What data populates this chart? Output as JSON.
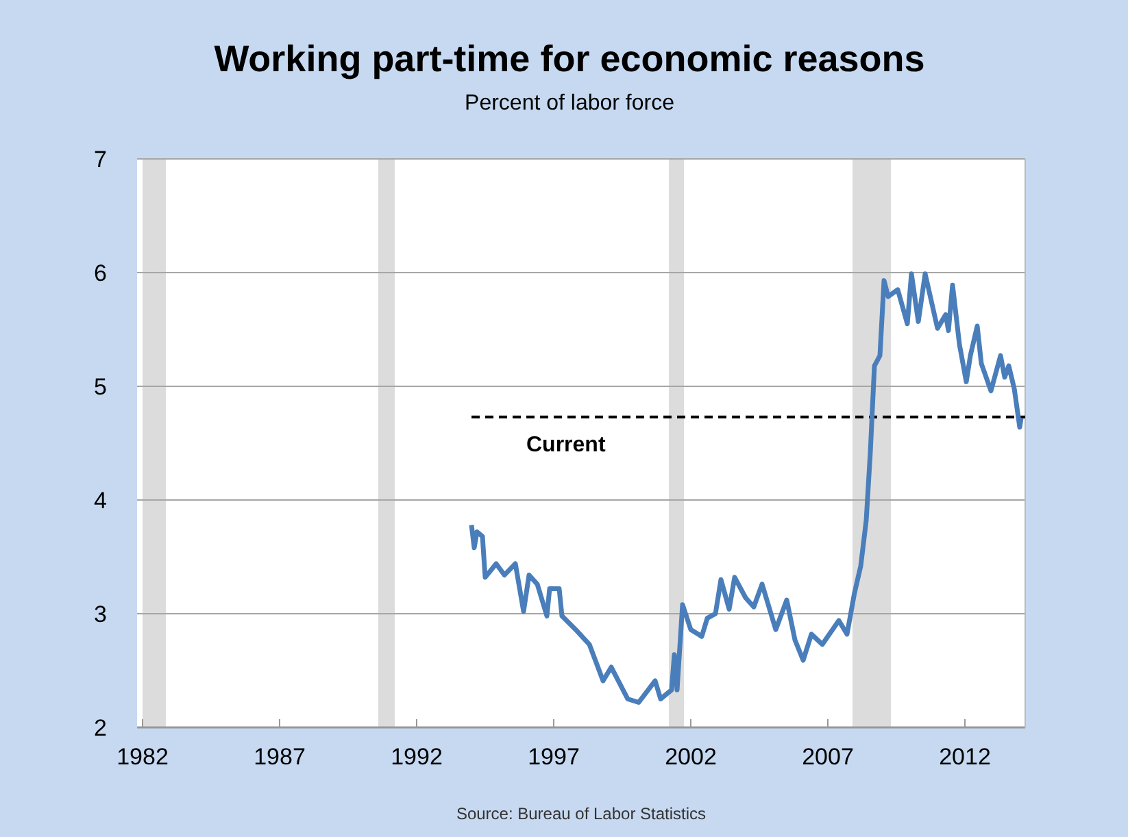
{
  "chart_data": {
    "type": "line",
    "title": "Working part-time for economic reasons",
    "subtitle": "Percent of labor force",
    "annotations": [
      "Source: Bureau of Labor Statistics"
    ],
    "x": [
      1994.0,
      1994.1,
      1994.2,
      1994.4,
      1994.5,
      1994.9,
      1995.2,
      1995.6,
      1995.9,
      1996.1,
      1996.4,
      1996.75,
      1996.85,
      1997.2,
      1997.3,
      1997.8,
      1998.3,
      1998.8,
      1999.1,
      1999.7,
      2000.1,
      2000.7,
      2000.9,
      2001.3,
      2001.4,
      2001.5,
      2001.7,
      2002.0,
      2002.4,
      2002.6,
      2002.9,
      2003.1,
      2003.4,
      2003.6,
      2004.0,
      2004.3,
      2004.6,
      2005.1,
      2005.5,
      2005.8,
      2006.1,
      2006.4,
      2006.8,
      2007.4,
      2007.7,
      2007.97,
      2008.2,
      2008.4,
      2008.55,
      2008.7,
      2008.9,
      2009.05,
      2009.2,
      2009.55,
      2009.9,
      2010.05,
      2010.3,
      2010.55,
      2011.0,
      2011.3,
      2011.4,
      2011.55,
      2011.8,
      2012.05,
      2012.2,
      2012.45,
      2012.6,
      2012.95,
      2013.3,
      2013.45,
      2013.6,
      2013.8,
      2014.0,
      2014.05
    ],
    "series": [
      {
        "color": "#4a7ebb",
        "values": [
          3.78,
          3.58,
          3.72,
          3.68,
          3.32,
          3.44,
          3.34,
          3.44,
          3.02,
          3.34,
          3.26,
          2.98,
          3.22,
          3.22,
          2.98,
          2.86,
          2.73,
          2.41,
          2.53,
          2.25,
          2.22,
          2.41,
          2.25,
          2.33,
          2.64,
          2.33,
          3.08,
          2.86,
          2.8,
          2.96,
          3.0,
          3.3,
          3.04,
          3.32,
          3.14,
          3.06,
          3.26,
          2.86,
          3.12,
          2.77,
          2.59,
          2.82,
          2.73,
          2.94,
          2.82,
          3.18,
          3.42,
          3.82,
          4.42,
          5.18,
          5.27,
          5.93,
          5.79,
          5.85,
          5.55,
          5.99,
          5.57,
          5.99,
          5.51,
          5.63,
          5.49,
          5.89,
          5.37,
          5.04,
          5.27,
          5.53,
          5.2,
          4.96,
          5.27,
          5.08,
          5.18,
          4.98,
          4.64,
          4.72
        ]
      }
    ],
    "xlim": [
      1981.8,
      2014.2
    ],
    "xticks": [
      1982,
      1987,
      1992,
      1997,
      2002,
      2007,
      2012
    ],
    "ylim": [
      2,
      7
    ],
    "yticks": [
      2,
      3,
      4,
      5,
      6,
      7
    ],
    "grid": "y",
    "ref_lines": [
      {
        "axis": "y",
        "value": 4.73,
        "label": "Current",
        "color": "#000000",
        "line_style": "dashed"
      }
    ],
    "bands": [
      {
        "axis": "x",
        "from": 1982.0,
        "to": 1982.85,
        "color": "#dcdcdc"
      },
      {
        "axis": "x",
        "from": 1990.6,
        "to": 1991.2,
        "color": "#dcdcdc"
      },
      {
        "axis": "x",
        "from": 2001.2,
        "to": 2001.75,
        "color": "#dcdcdc"
      },
      {
        "axis": "x",
        "from": 2007.9,
        "to": 2009.3,
        "color": "#dcdcdc"
      }
    ]
  }
}
